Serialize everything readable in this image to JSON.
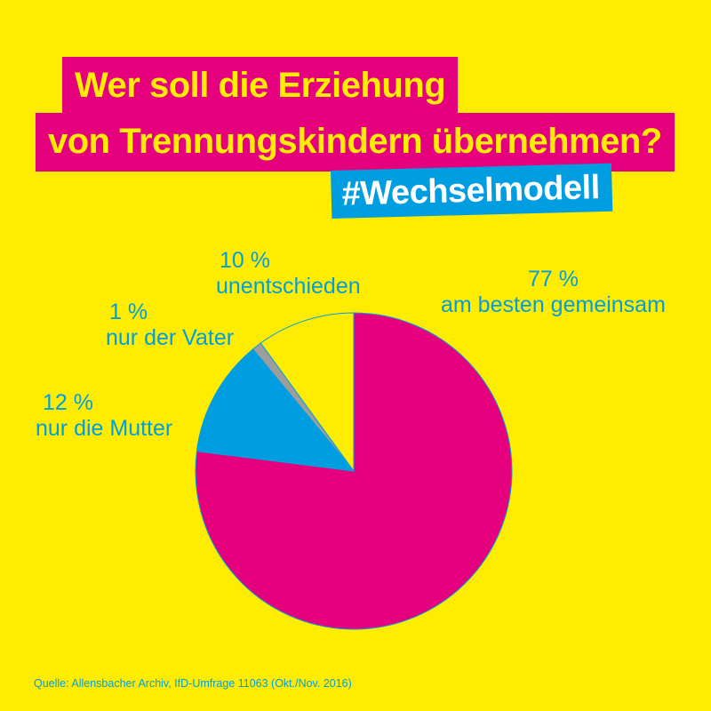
{
  "title": {
    "line1": "Wer soll die Erziehung",
    "line2": "von Trennungskindern übernehmen?"
  },
  "hashtag": "#Wechselmodell",
  "source": "Quelle: Allensbacher Archiv, IfD-Umfrage 11063 (Okt./Nov. 2016)",
  "colors": {
    "background": "#ffed00",
    "magenta": "#e5007d",
    "blue": "#009ee0",
    "gray": "#9d9d9c",
    "yellow": "#ffed00"
  },
  "chart_data": {
    "type": "pie",
    "slices": [
      {
        "percent_label": "77 %",
        "label": "am besten gemeinsam",
        "value": 77,
        "color": "#e5007d"
      },
      {
        "percent_label": "12 %",
        "label": "nur die Mutter",
        "value": 12,
        "color": "#009ee0"
      },
      {
        "percent_label": "1 %",
        "label": "nur der Vater",
        "value": 1,
        "color": "#9d9d9c"
      },
      {
        "percent_label": "10 %",
        "label": "unentschieden",
        "value": 10,
        "color": "#ffed00"
      }
    ]
  }
}
